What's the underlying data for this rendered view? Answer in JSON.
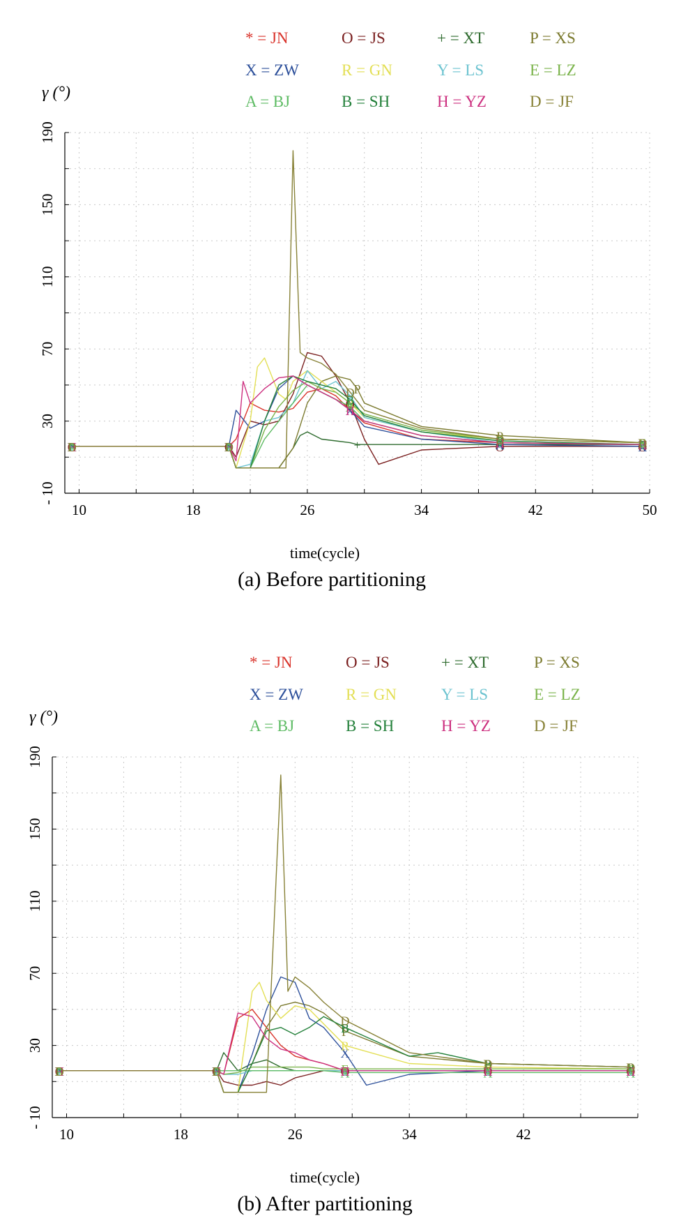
{
  "chart_data": [
    {
      "type": "line",
      "caption": "(a) Before partitioning",
      "xlabel": "time(cycle)",
      "ylabel": "γ (°)",
      "xlim": [
        9,
        50
      ],
      "ylim": [
        -10,
        190
      ],
      "x_ticks": [
        "10",
        "18",
        "26",
        "34",
        "42",
        "50"
      ],
      "y_ticks": [
        "190",
        "150",
        "110",
        "70",
        "30",
        "- 10"
      ],
      "grid": true,
      "legend_position": "top",
      "legend": [
        {
          "text": "* = JN",
          "color": "#d9332b"
        },
        {
          "text": "O = JS",
          "color": "#7a1f1f"
        },
        {
          "text": "+ = XT",
          "color": "#2e6b2e"
        },
        {
          "text": "P = XS",
          "color": "#7b7a2e"
        },
        {
          "text": "X = ZW",
          "color": "#2c4f9a"
        },
        {
          "text": "R = GN",
          "color": "#e3df55"
        },
        {
          "text": "Y = LS",
          "color": "#6cc3d0"
        },
        {
          "text": "E = LZ",
          "color": "#7ab34a"
        },
        {
          "text": "A = BJ",
          "color": "#5dbb63"
        },
        {
          "text": "B = SH",
          "color": "#23803a"
        },
        {
          "text": "H = YZ",
          "color": "#cc2f7f"
        },
        {
          "text": "D = JF",
          "color": "#878136"
        }
      ],
      "series": [
        {
          "marker": "*",
          "color": "#d9332b",
          "x": [
            9.5,
            20.5,
            21,
            22,
            23,
            24,
            25,
            26,
            27,
            28,
            29,
            30,
            34,
            39.5,
            49.5
          ],
          "y": [
            16,
            16,
            20,
            40,
            36,
            35,
            37,
            46,
            48,
            44,
            36,
            29,
            20,
            18,
            17
          ]
        },
        {
          "marker": "O",
          "color": "#7a1f1f",
          "x": [
            9.5,
            20.5,
            21,
            22,
            23,
            24,
            25,
            26,
            27,
            28,
            29,
            30,
            31,
            34,
            39.5,
            49.5
          ],
          "y": [
            16,
            16,
            10,
            30,
            28,
            30,
            45,
            68,
            66,
            55,
            40,
            20,
            6,
            14,
            16,
            16
          ]
        },
        {
          "marker": "+",
          "color": "#2e6b2e",
          "x": [
            9.5,
            20.5,
            21,
            22,
            23,
            24,
            25,
            25.5,
            26,
            27,
            28,
            29,
            29.5,
            34,
            39.5,
            49.5
          ],
          "y": [
            16,
            16,
            4,
            4,
            4,
            4,
            15,
            22,
            24,
            20,
            19,
            18,
            17,
            17,
            17,
            17
          ]
        },
        {
          "marker": "P",
          "color": "#7b7a2e",
          "x": [
            9.5,
            20.5,
            21,
            22,
            23,
            24,
            25,
            26,
            27,
            28,
            29,
            29.5,
            30,
            34,
            39.5,
            49.5
          ],
          "y": [
            16,
            16,
            4,
            4,
            4,
            4,
            15,
            40,
            52,
            55,
            53,
            48,
            40,
            27,
            22,
            18
          ]
        },
        {
          "marker": "X",
          "color": "#2c4f9a",
          "x": [
            9.5,
            20.5,
            21,
            22,
            23,
            24,
            25,
            26,
            27,
            28,
            29,
            30,
            34,
            39.5,
            49.5
          ],
          "y": [
            16,
            16,
            36,
            26,
            30,
            48,
            55,
            50,
            46,
            42,
            36,
            27,
            20,
            17,
            16
          ]
        },
        {
          "marker": "R",
          "color": "#e3df55",
          "x": [
            9.5,
            20.5,
            21,
            22,
            22.5,
            23,
            24,
            24.5,
            25,
            26,
            27,
            28,
            29,
            30,
            34,
            39.5,
            49.5
          ],
          "y": [
            16,
            16,
            4,
            30,
            60,
            65,
            45,
            42,
            52,
            58,
            52,
            46,
            40,
            32,
            24,
            20,
            18
          ]
        },
        {
          "marker": "Y",
          "color": "#6cc3d0",
          "x": [
            9.5,
            20.5,
            21,
            22,
            23,
            24,
            25,
            26,
            27,
            28,
            29,
            30,
            34,
            39.5,
            49.5
          ],
          "y": [
            16,
            16,
            4,
            6,
            30,
            32,
            40,
            58,
            48,
            52,
            44,
            32,
            24,
            18,
            17
          ]
        },
        {
          "marker": "E",
          "color": "#7ab34a",
          "x": [
            9.5,
            20.5,
            21,
            22,
            23,
            24,
            25,
            26,
            27,
            28,
            29,
            30,
            34,
            39.5,
            49.5
          ],
          "y": [
            16,
            16,
            4,
            4,
            25,
            38,
            47,
            52,
            48,
            46,
            40,
            34,
            25,
            20,
            18
          ]
        },
        {
          "marker": "A",
          "color": "#5dbb63",
          "x": [
            9.5,
            20.5,
            21,
            22,
            23,
            24,
            25,
            26,
            27,
            28,
            29,
            30,
            34,
            39.5,
            49.5
          ],
          "y": [
            16,
            16,
            4,
            4,
            20,
            30,
            40,
            50,
            46,
            42,
            38,
            30,
            22,
            18,
            17
          ]
        },
        {
          "marker": "B",
          "color": "#23803a",
          "x": [
            9.5,
            20.5,
            21,
            22,
            23,
            24,
            25,
            26,
            27,
            28,
            29,
            30,
            34,
            39.5,
            49.5
          ],
          "y": [
            16,
            16,
            4,
            4,
            30,
            50,
            55,
            52,
            50,
            48,
            42,
            33,
            24,
            19,
            17
          ]
        },
        {
          "marker": "H",
          "color": "#cc2f7f",
          "x": [
            9.5,
            20.5,
            21,
            21.5,
            22,
            23,
            24,
            25,
            26,
            27,
            28,
            29,
            30,
            34,
            39.5,
            49.5
          ],
          "y": [
            16,
            16,
            8,
            52,
            40,
            48,
            54,
            55,
            50,
            46,
            42,
            36,
            30,
            22,
            18,
            17
          ]
        },
        {
          "marker": "D",
          "color": "#878136",
          "x": [
            9.5,
            20.5,
            21,
            24.5,
            25,
            25.5,
            26,
            27,
            28,
            29,
            30,
            34,
            39.5,
            49.5
          ],
          "y": [
            16,
            16,
            4,
            4,
            180,
            68,
            65,
            62,
            56,
            46,
            36,
            26,
            20,
            18
          ]
        }
      ]
    },
    {
      "type": "line",
      "caption": "(b) After partitioning",
      "xlabel": "time(cycle)",
      "ylabel": "γ (°)",
      "xlim": [
        9,
        50
      ],
      "ylim": [
        -10,
        190
      ],
      "x_ticks": [
        "10",
        "18",
        "26",
        "34",
        "42"
      ],
      "y_ticks": [
        "190",
        "150",
        "110",
        "70",
        "30",
        "- 10"
      ],
      "grid": true,
      "legend_position": "top",
      "legend": [
        {
          "text": "* = JN",
          "color": "#d9332b"
        },
        {
          "text": "O = JS",
          "color": "#7a1f1f"
        },
        {
          "text": "+ = XT",
          "color": "#2e6b2e"
        },
        {
          "text": "P = XS",
          "color": "#7b7a2e"
        },
        {
          "text": "X = ZW",
          "color": "#2c4f9a"
        },
        {
          "text": "R = GN",
          "color": "#e3df55"
        },
        {
          "text": "Y = LS",
          "color": "#6cc3d0"
        },
        {
          "text": "E = LZ",
          "color": "#7ab34a"
        },
        {
          "text": "A = BJ",
          "color": "#5dbb63"
        },
        {
          "text": "B = SH",
          "color": "#23803a"
        },
        {
          "text": "H = YZ",
          "color": "#cc2f7f"
        },
        {
          "text": "D = JF",
          "color": "#878136"
        }
      ],
      "series": [
        {
          "marker": "*",
          "color": "#d9332b",
          "x": [
            9.5,
            20.5,
            21,
            22,
            23,
            24,
            25,
            26,
            27,
            28,
            29.5,
            34,
            39.5,
            49.5
          ],
          "y": [
            16,
            16,
            14,
            45,
            50,
            40,
            30,
            24,
            22,
            20,
            16,
            16,
            16,
            16
          ]
        },
        {
          "marker": "O",
          "color": "#7a1f1f",
          "x": [
            9.5,
            20.5,
            21,
            22,
            23,
            24,
            25,
            26,
            27,
            28,
            29.5,
            34,
            39.5,
            49.5
          ],
          "y": [
            16,
            16,
            10,
            8,
            8,
            10,
            8,
            12,
            14,
            16,
            16,
            16,
            16,
            16
          ]
        },
        {
          "marker": "+",
          "color": "#2e6b2e",
          "x": [
            9.5,
            20.5,
            21,
            22,
            23,
            24,
            25,
            26,
            27,
            28,
            29.5,
            34,
            39.5,
            49.5
          ],
          "y": [
            16,
            16,
            26,
            16,
            20,
            22,
            18,
            16,
            16,
            16,
            16,
            16,
            16,
            16
          ]
        },
        {
          "marker": "P",
          "color": "#7b7a2e",
          "x": [
            9.5,
            20.5,
            21,
            22,
            23,
            24,
            25,
            26,
            27,
            28,
            29.5,
            34,
            39.5,
            49.5
          ],
          "y": [
            16,
            16,
            4,
            4,
            20,
            40,
            52,
            54,
            52,
            48,
            38,
            24,
            20,
            18
          ]
        },
        {
          "marker": "X",
          "color": "#2c4f9a",
          "x": [
            9.5,
            20.5,
            21,
            22,
            23,
            24,
            25,
            26,
            27,
            28,
            29.5,
            31,
            34,
            39.5,
            49.5
          ],
          "y": [
            16,
            16,
            4,
            4,
            25,
            50,
            68,
            65,
            45,
            40,
            26,
            8,
            14,
            16,
            16
          ]
        },
        {
          "marker": "R",
          "color": "#e3df55",
          "x": [
            9.5,
            20.5,
            21,
            22,
            23,
            23.5,
            24,
            25,
            26,
            27,
            28,
            29.5,
            34,
            39.5,
            49.5
          ],
          "y": [
            16,
            16,
            4,
            4,
            60,
            65,
            55,
            45,
            52,
            50,
            42,
            30,
            20,
            18,
            17
          ]
        },
        {
          "marker": "Y",
          "color": "#6cc3d0",
          "x": [
            9.5,
            20.5,
            21,
            22,
            23,
            24,
            25,
            26,
            27,
            28,
            29.5,
            34,
            39.5,
            49.5
          ],
          "y": [
            16,
            16,
            14,
            14,
            16,
            16,
            16,
            16,
            16,
            16,
            16,
            16,
            16,
            16
          ]
        },
        {
          "marker": "E",
          "color": "#7ab34a",
          "x": [
            9.5,
            20.5,
            21,
            22,
            23,
            24,
            25,
            26,
            27,
            28,
            29.5,
            34,
            39.5,
            49.5
          ],
          "y": [
            16,
            16,
            14,
            15,
            18,
            18,
            18,
            18,
            18,
            17,
            17,
            17,
            17,
            17
          ]
        },
        {
          "marker": "A",
          "color": "#5dbb63",
          "x": [
            9.5,
            20.5,
            21,
            22,
            23,
            24,
            25,
            26,
            27,
            28,
            29.5,
            34,
            39.5,
            49.5
          ],
          "y": [
            16,
            16,
            16,
            16,
            16,
            16,
            16,
            16,
            16,
            16,
            15,
            15,
            15,
            15
          ]
        },
        {
          "marker": "B",
          "color": "#23803a",
          "x": [
            9.5,
            20.5,
            21,
            22,
            23,
            24,
            25,
            26,
            27,
            28,
            29.5,
            34,
            36,
            39.5,
            49.5
          ],
          "y": [
            16,
            16,
            4,
            4,
            20,
            38,
            40,
            36,
            40,
            46,
            40,
            24,
            26,
            20,
            18
          ]
        },
        {
          "marker": "H",
          "color": "#cc2f7f",
          "x": [
            9.5,
            20.5,
            21,
            22,
            23,
            24,
            25,
            26,
            27,
            28,
            29.5,
            34,
            39.5,
            49.5
          ],
          "y": [
            16,
            16,
            14,
            48,
            46,
            34,
            28,
            26,
            22,
            20,
            16,
            16,
            16,
            16
          ]
        },
        {
          "marker": "D",
          "color": "#878136",
          "x": [
            9.5,
            20.5,
            21,
            24,
            25,
            25.5,
            26,
            27,
            28,
            29.5,
            34,
            39.5,
            49.5
          ],
          "y": [
            16,
            16,
            4,
            4,
            180,
            60,
            68,
            62,
            54,
            44,
            26,
            20,
            18
          ]
        }
      ]
    }
  ]
}
